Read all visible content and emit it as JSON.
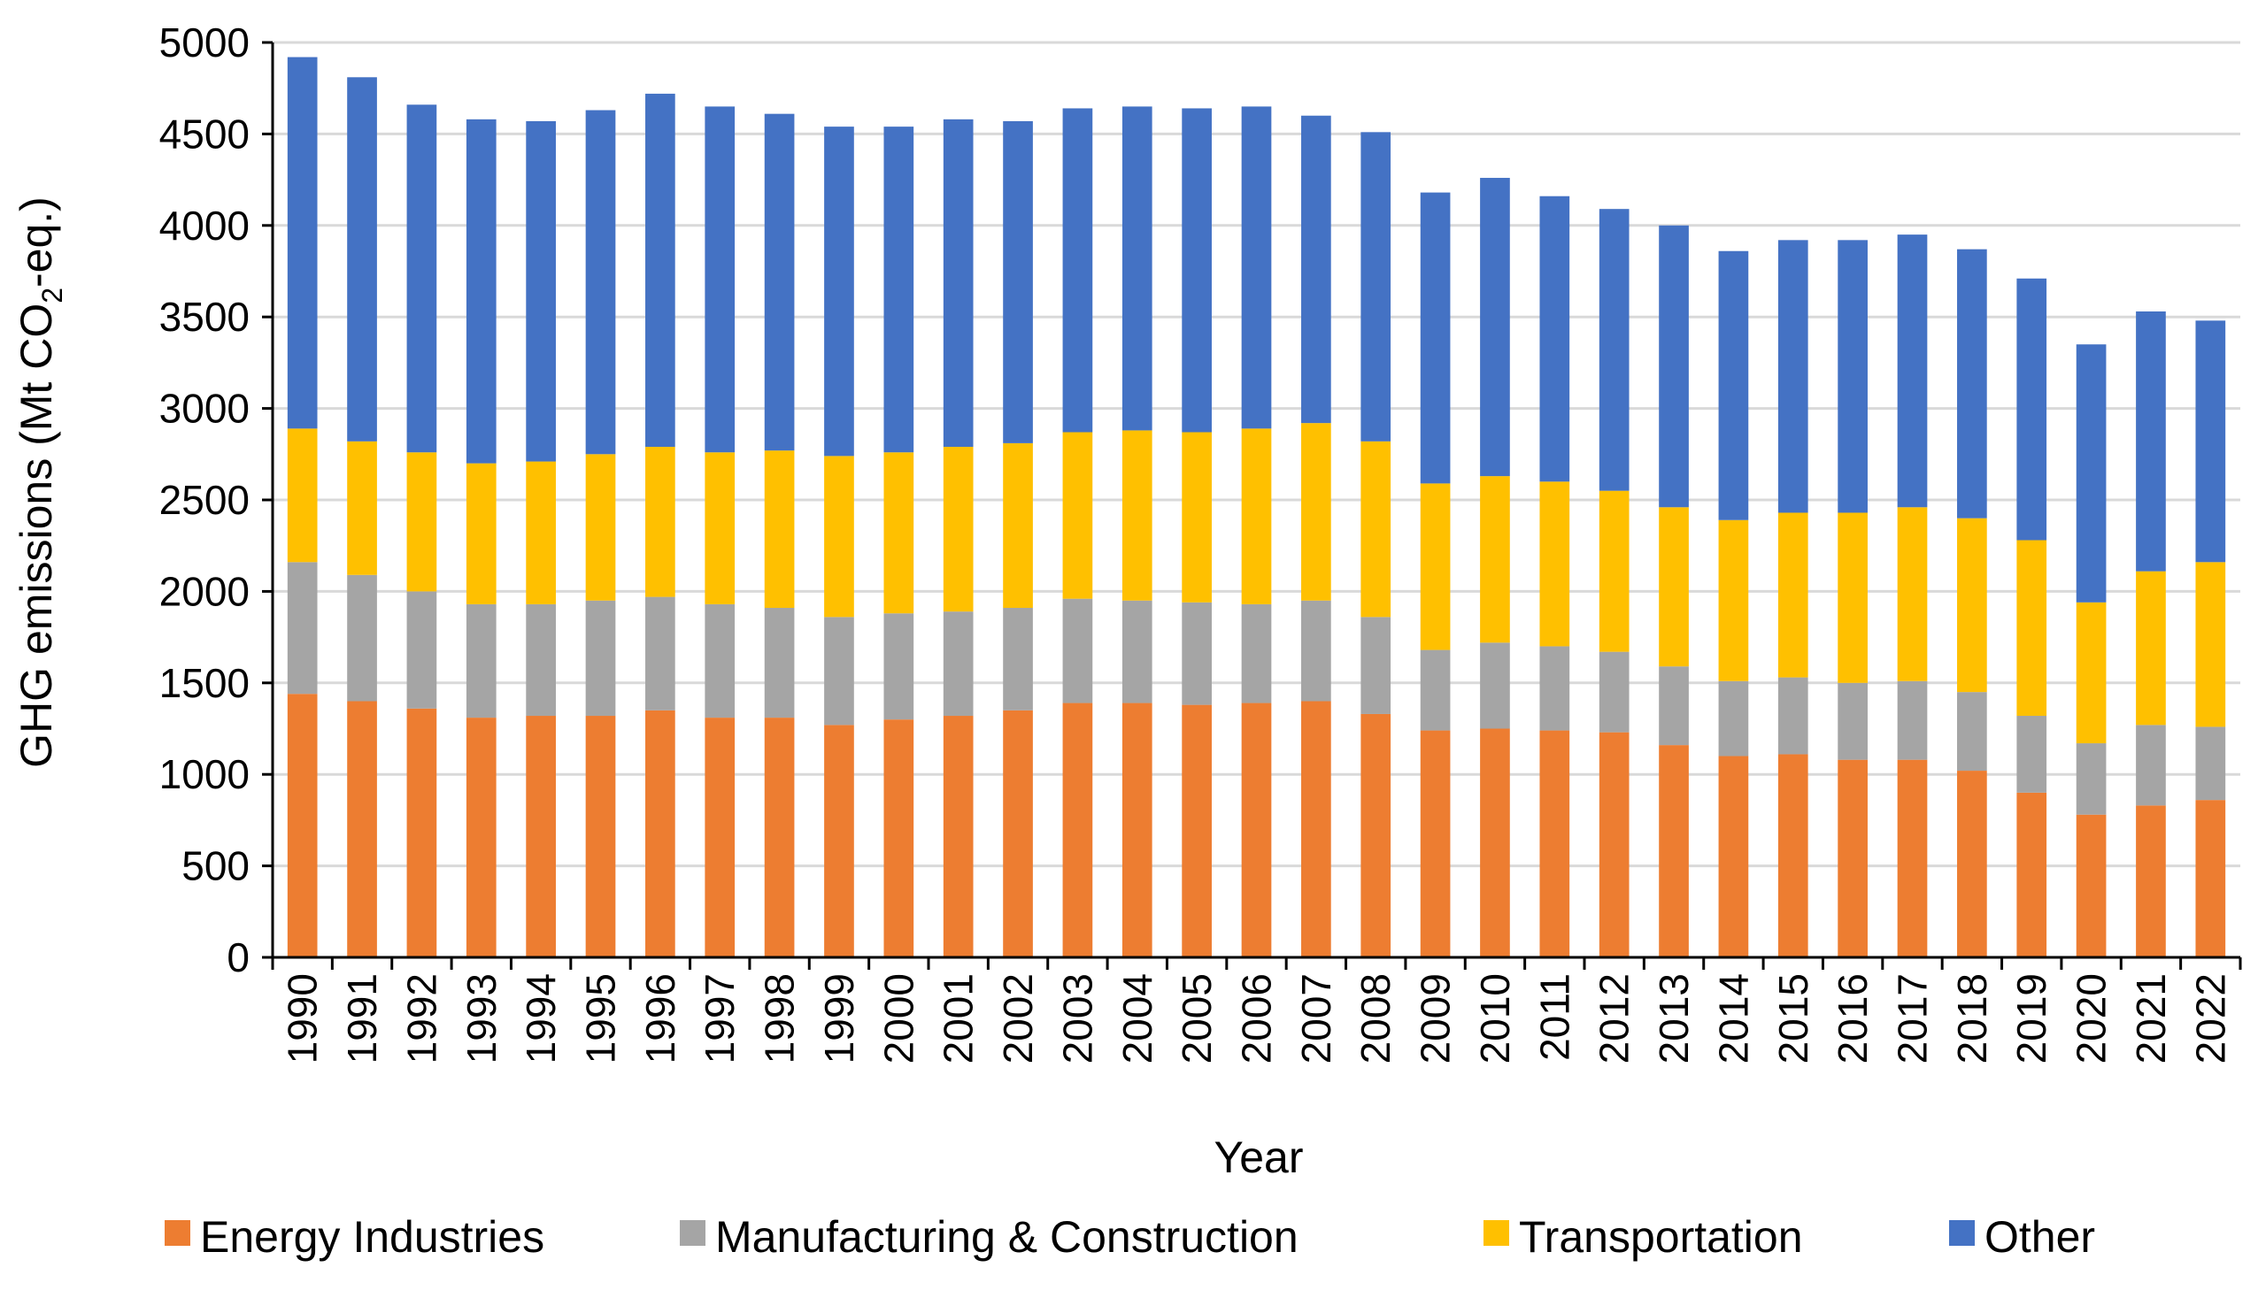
{
  "chart_data": {
    "type": "bar",
    "stacked": true,
    "title": "",
    "xlabel": "Year",
    "ylabel_prefix": "GHG emissions (Mt CO",
    "ylabel_subscript": "2",
    "ylabel_suffix": "-eq.)",
    "ylim": [
      0,
      5000
    ],
    "yticks": [
      0,
      500,
      1000,
      1500,
      2000,
      2500,
      3000,
      3500,
      4000,
      4500,
      5000
    ],
    "grid": true,
    "legend_position": "bottom",
    "categories": [
      "1990",
      "1991",
      "1992",
      "1993",
      "1994",
      "1995",
      "1996",
      "1997",
      "1998",
      "1999",
      "2000",
      "2001",
      "2002",
      "2003",
      "2004",
      "2005",
      "2006",
      "2007",
      "2008",
      "2009",
      "2010",
      "2011",
      "2012",
      "2013",
      "2014",
      "2015",
      "2016",
      "2017",
      "2018",
      "2019",
      "2020",
      "2021",
      "2022"
    ],
    "series": [
      {
        "name": "Energy Industries",
        "color": "#ED7D31",
        "values": [
          1440,
          1400,
          1360,
          1310,
          1320,
          1320,
          1350,
          1310,
          1310,
          1270,
          1300,
          1320,
          1350,
          1390,
          1390,
          1380,
          1390,
          1400,
          1330,
          1240,
          1250,
          1240,
          1230,
          1160,
          1100,
          1110,
          1080,
          1080,
          1020,
          900,
          780,
          830,
          860
        ]
      },
      {
        "name": "Manufacturing & Construction",
        "color": "#A5A5A5",
        "values": [
          720,
          690,
          640,
          620,
          610,
          630,
          620,
          620,
          600,
          590,
          580,
          570,
          560,
          570,
          560,
          560,
          540,
          550,
          530,
          440,
          470,
          460,
          440,
          430,
          410,
          420,
          420,
          430,
          430,
          420,
          390,
          440,
          400
        ]
      },
      {
        "name": "Transportation",
        "color": "#FFC000",
        "values": [
          730,
          730,
          760,
          770,
          780,
          800,
          820,
          830,
          860,
          880,
          880,
          900,
          900,
          910,
          930,
          930,
          960,
          970,
          960,
          910,
          910,
          900,
          880,
          870,
          880,
          900,
          930,
          950,
          950,
          960,
          770,
          840,
          900
        ]
      },
      {
        "name": "Other",
        "color": "#4472C4",
        "values": [
          2030,
          1990,
          1900,
          1880,
          1860,
          1880,
          1930,
          1890,
          1840,
          1800,
          1780,
          1790,
          1760,
          1770,
          1770,
          1770,
          1760,
          1680,
          1690,
          1590,
          1630,
          1560,
          1540,
          1540,
          1470,
          1490,
          1490,
          1490,
          1470,
          1430,
          1410,
          1420,
          1320
        ]
      }
    ]
  }
}
